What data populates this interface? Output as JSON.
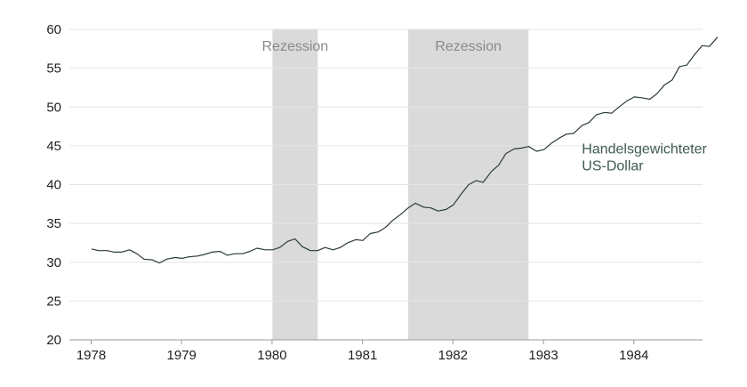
{
  "chart_data": {
    "type": "line",
    "title": "",
    "xlabel": "",
    "ylabel": "",
    "ylim": [
      20,
      60
    ],
    "xlim": [
      1978.0,
      1985.0
    ],
    "y_ticks": [
      "20",
      "25",
      "30",
      "35",
      "40",
      "45",
      "50",
      "55",
      "60"
    ],
    "x_ticks": [
      "1978",
      "1979",
      "1980",
      "1981",
      "1982",
      "1983",
      "1984"
    ],
    "grid": "horizontal",
    "line_color": "#2b3b36",
    "recession_color": "#d9dad9",
    "recessions": [
      {
        "label": "Rezession",
        "start": 1980.0,
        "end": 1980.5
      },
      {
        "label": "Rezession",
        "start": 1981.5,
        "end": 1982.83
      }
    ],
    "series": [
      {
        "name": "Handelsgewichteter US-Dollar",
        "label_lines": [
          "Handelsgewichteter",
          "US-Dollar"
        ],
        "color": "#2b3b36",
        "points": [
          [
            1978.0,
            31.7
          ],
          [
            1978.08,
            31.5
          ],
          [
            1978.17,
            31.5
          ],
          [
            1978.25,
            31.3
          ],
          [
            1978.33,
            31.3
          ],
          [
            1978.42,
            31.6
          ],
          [
            1978.5,
            31.1
          ],
          [
            1978.58,
            30.4
          ],
          [
            1978.67,
            30.3
          ],
          [
            1978.75,
            29.9
          ],
          [
            1978.83,
            30.4
          ],
          [
            1978.92,
            30.6
          ],
          [
            1979.0,
            30.5
          ],
          [
            1979.08,
            30.7
          ],
          [
            1979.17,
            30.8
          ],
          [
            1979.25,
            31.0
          ],
          [
            1979.33,
            31.3
          ],
          [
            1979.42,
            31.4
          ],
          [
            1979.5,
            30.9
          ],
          [
            1979.58,
            31.1
          ],
          [
            1979.67,
            31.1
          ],
          [
            1979.75,
            31.4
          ],
          [
            1979.83,
            31.8
          ],
          [
            1979.92,
            31.6
          ],
          [
            1980.0,
            31.6
          ],
          [
            1980.08,
            31.9
          ],
          [
            1980.17,
            32.7
          ],
          [
            1980.25,
            33.0
          ],
          [
            1980.33,
            32.0
          ],
          [
            1980.42,
            31.5
          ],
          [
            1980.5,
            31.5
          ],
          [
            1980.58,
            31.9
          ],
          [
            1980.67,
            31.6
          ],
          [
            1980.75,
            31.9
          ],
          [
            1980.83,
            32.5
          ],
          [
            1980.92,
            32.9
          ],
          [
            1981.0,
            32.8
          ],
          [
            1981.08,
            33.7
          ],
          [
            1981.17,
            33.9
          ],
          [
            1981.25,
            34.5
          ],
          [
            1981.33,
            35.4
          ],
          [
            1981.42,
            36.2
          ],
          [
            1981.5,
            37.0
          ],
          [
            1981.58,
            37.6
          ],
          [
            1981.67,
            37.1
          ],
          [
            1981.75,
            37.0
          ],
          [
            1981.83,
            36.6
          ],
          [
            1981.92,
            36.8
          ],
          [
            1982.0,
            37.4
          ],
          [
            1982.08,
            38.7
          ],
          [
            1982.17,
            40.0
          ],
          [
            1982.25,
            40.5
          ],
          [
            1982.33,
            40.3
          ],
          [
            1982.42,
            41.7
          ],
          [
            1982.5,
            42.5
          ],
          [
            1982.58,
            44.0
          ],
          [
            1982.67,
            44.6
          ],
          [
            1982.75,
            44.7
          ],
          [
            1982.83,
            44.9
          ],
          [
            1982.92,
            44.3
          ],
          [
            1983.0,
            44.5
          ],
          [
            1983.08,
            45.3
          ],
          [
            1983.17,
            46.0
          ],
          [
            1983.25,
            46.5
          ],
          [
            1983.33,
            46.6
          ],
          [
            1983.42,
            47.6
          ],
          [
            1983.5,
            48.0
          ],
          [
            1983.58,
            49.0
          ],
          [
            1983.67,
            49.3
          ],
          [
            1983.75,
            49.2
          ],
          [
            1983.83,
            50.0
          ],
          [
            1983.92,
            50.8
          ],
          [
            1984.0,
            51.3
          ],
          [
            1984.08,
            51.2
          ],
          [
            1984.17,
            51.0
          ],
          [
            1984.25,
            51.7
          ],
          [
            1984.33,
            52.8
          ],
          [
            1984.42,
            53.5
          ],
          [
            1984.5,
            55.2
          ],
          [
            1984.58,
            55.4
          ],
          [
            1984.67,
            56.8
          ],
          [
            1984.75,
            57.9
          ],
          [
            1984.83,
            57.8
          ],
          [
            1984.92,
            59.0
          ]
        ]
      }
    ]
  }
}
